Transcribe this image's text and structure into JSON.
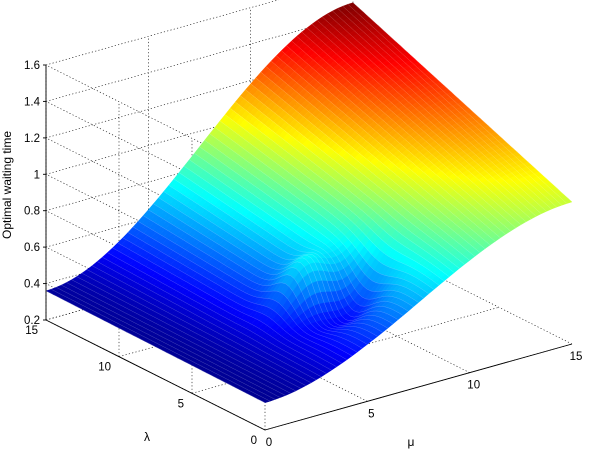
{
  "chart_data": {
    "type": "surface",
    "title": "",
    "xlabel": "μ",
    "ylabel": "λ",
    "zlabel": "Optimal waiting time",
    "xlim": [
      0,
      15
    ],
    "ylim": [
      0,
      15
    ],
    "zlim": [
      0.2,
      1.6
    ],
    "x_ticks": [
      0,
      5,
      10,
      15
    ],
    "y_ticks": [
      0,
      5,
      10,
      15
    ],
    "z_ticks": [
      0.2,
      0.4,
      0.6,
      0.8,
      1,
      1.2,
      1.4,
      1.6
    ],
    "grid": true,
    "colormap": "jet",
    "shading": "mesh",
    "mesh_resolution": 60,
    "corner_values": [
      {
        "mu": 0,
        "lambda": 15,
        "z": 0.36
      },
      {
        "mu": 0,
        "lambda": 0,
        "z": 0.35
      },
      {
        "mu": 15,
        "lambda": 15,
        "z": 1.47
      },
      {
        "mu": 15,
        "lambda": 0,
        "z": 0.98
      }
    ],
    "ridge_peak": {
      "mu": 5.7,
      "lambda": 5.0,
      "z": 0.55
    },
    "valley_min": {
      "mu": 6.5,
      "lambda": 3.8,
      "z": 0.36
    }
  }
}
